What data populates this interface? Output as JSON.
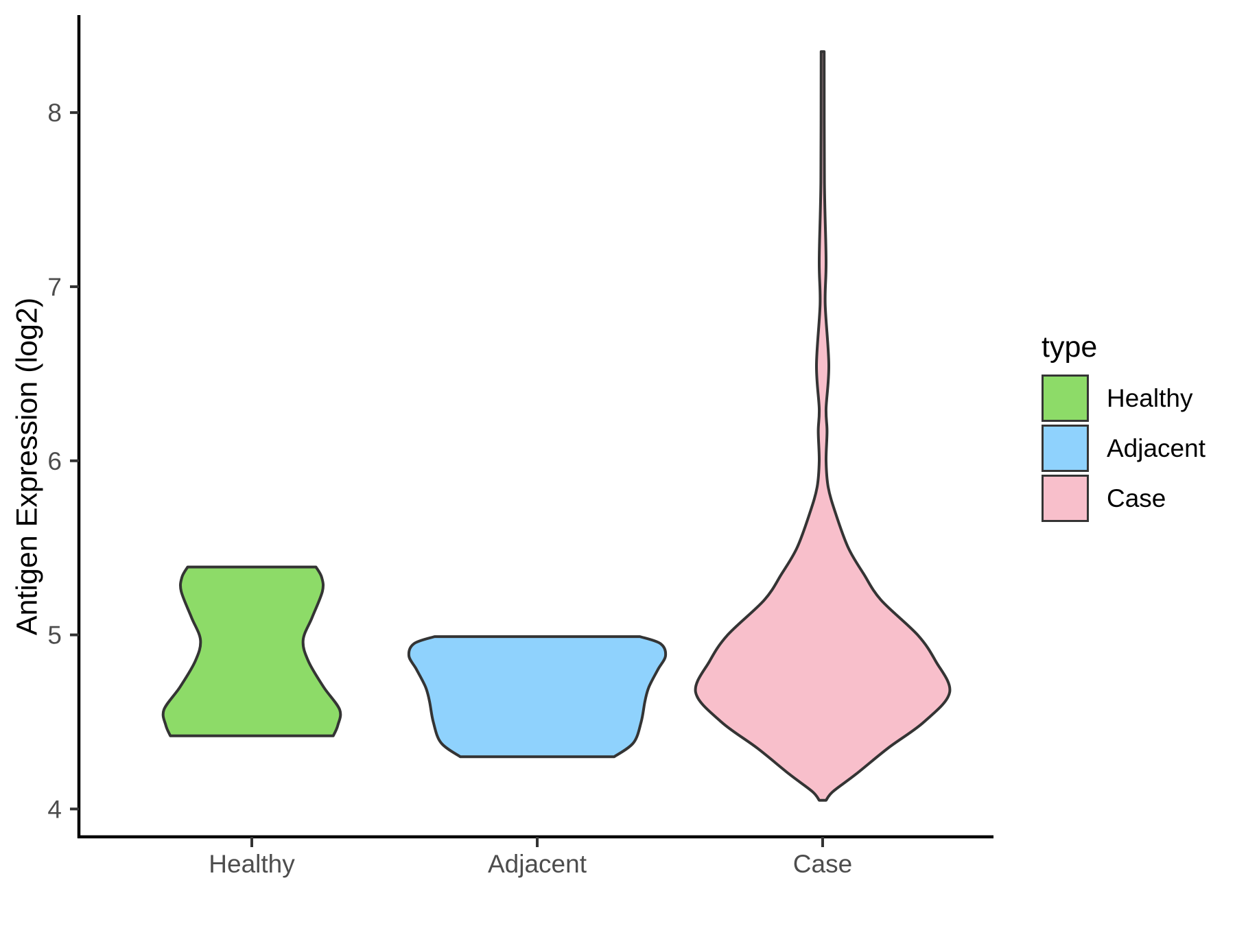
{
  "chart_data": {
    "type": "violin",
    "title": "",
    "xlabel": "",
    "ylabel": "Antigen Expression (log2)",
    "categories": [
      "Healthy",
      "Adjacent",
      "Case"
    ],
    "yticks": [
      4,
      5,
      6,
      7,
      8
    ],
    "ylim": [
      3.84,
      8.56
    ],
    "grid": "off",
    "legend": {
      "title": "type",
      "position": "right",
      "items": [
        {
          "label": "Healthy",
          "color": "#8DDB68"
        },
        {
          "label": "Adjacent",
          "color": "#8FD2FD"
        },
        {
          "label": "Case",
          "color": "#F8BFCB"
        }
      ]
    },
    "outline_color": "#343434",
    "axis_color": "#000000",
    "tick_label_color": "#4D4D4D",
    "profile_note": "profile = [y_value, half_width]; half_width is normalized so 1.0 = widest violin (about 0.45 of a category slot)",
    "violins": [
      {
        "category": "Healthy",
        "color": "#8DDB68",
        "min": 4.42,
        "max": 5.39,
        "profile": [
          [
            5.39,
            0.5
          ],
          [
            5.33,
            0.545
          ],
          [
            5.25,
            0.55
          ],
          [
            5.1,
            0.47
          ],
          [
            4.97,
            0.4
          ],
          [
            4.85,
            0.44
          ],
          [
            4.7,
            0.56
          ],
          [
            4.57,
            0.685
          ],
          [
            4.48,
            0.67
          ],
          [
            4.42,
            0.635
          ]
        ]
      },
      {
        "category": "Adjacent",
        "color": "#8FD2FD",
        "min": 4.3,
        "max": 4.99,
        "profile": [
          [
            4.99,
            0.8
          ],
          [
            4.95,
            0.96
          ],
          [
            4.88,
            1.0
          ],
          [
            4.8,
            0.94
          ],
          [
            4.7,
            0.87
          ],
          [
            4.62,
            0.84
          ],
          [
            4.5,
            0.81
          ],
          [
            4.38,
            0.75
          ],
          [
            4.3,
            0.6
          ]
        ]
      },
      {
        "category": "Case",
        "color": "#F8BFCB",
        "min": 4.05,
        "max": 8.35,
        "profile": [
          [
            8.35,
            0.012
          ],
          [
            7.6,
            0.014
          ],
          [
            7.15,
            0.027
          ],
          [
            6.9,
            0.02
          ],
          [
            6.55,
            0.048
          ],
          [
            6.3,
            0.027
          ],
          [
            6.17,
            0.034
          ],
          [
            6.0,
            0.027
          ],
          [
            5.85,
            0.043
          ],
          [
            5.7,
            0.1
          ],
          [
            5.5,
            0.2
          ],
          [
            5.35,
            0.32
          ],
          [
            5.2,
            0.455
          ],
          [
            5.0,
            0.74
          ],
          [
            4.85,
            0.88
          ],
          [
            4.67,
            0.99
          ],
          [
            4.5,
            0.79
          ],
          [
            4.35,
            0.51
          ],
          [
            4.2,
            0.26
          ],
          [
            4.1,
            0.08
          ],
          [
            4.05,
            0.027
          ]
        ]
      }
    ]
  }
}
